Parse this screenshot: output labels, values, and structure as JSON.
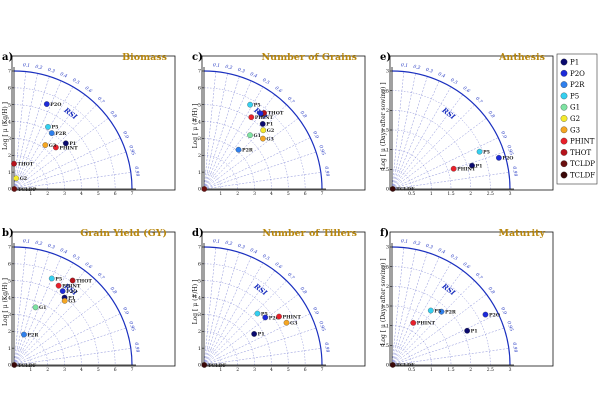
{
  "chart_data": {
    "type": "taylor",
    "arc_label": "RSI",
    "rsi_ticks": [
      "0.1",
      "0.2",
      "0.3",
      "0.4",
      "0.5",
      "0.6",
      "0.7",
      "0.8",
      "0.9",
      "0.95",
      "0.99"
    ],
    "legend": [
      {
        "name": "P1",
        "color": "#0a0a6e"
      },
      {
        "name": "P2O",
        "color": "#1c2ad9"
      },
      {
        "name": "P2R",
        "color": "#2f80ed"
      },
      {
        "name": "P5",
        "color": "#35d0f0"
      },
      {
        "name": "G1",
        "color": "#7ee3a3"
      },
      {
        "name": "G2",
        "color": "#f5ea2d"
      },
      {
        "name": "G3",
        "color": "#f5a623"
      },
      {
        "name": "PHINT",
        "color": "#e8202a"
      },
      {
        "name": "THOT",
        "color": "#b5121b"
      },
      {
        "name": "TCLDP",
        "color": "#6b1010"
      },
      {
        "name": "TCLDF",
        "color": "#3a0808"
      }
    ],
    "panels": [
      {
        "letter": "a)",
        "title": "Biomass",
        "ylabel": "Log [ μ (Kg/H) ]",
        "rmax": 7,
        "ticks": [
          "0",
          "1",
          "2",
          "3",
          "4",
          "5",
          "6",
          "7"
        ],
        "points": [
          {
            "name": "P2O",
            "sd": 5.4,
            "rsi": 0.36,
            "label": "P2O"
          },
          {
            "name": "P5",
            "sd": 4.2,
            "rsi": 0.48,
            "label": "P5"
          },
          {
            "name": "P2R",
            "sd": 4.0,
            "rsi": 0.56,
            "label": "P2R"
          },
          {
            "name": "P1",
            "sd": 4.1,
            "rsi": 0.75,
            "label": "P1"
          },
          {
            "name": "PHINT",
            "sd": 3.5,
            "rsi": 0.71,
            "label": "PHINT"
          },
          {
            "name": "G3",
            "sd": 3.2,
            "rsi": 0.58,
            "label": "G3"
          },
          {
            "name": "THOT",
            "sd": 1.5,
            "rsi": 0.0,
            "label": "THOT"
          },
          {
            "name": "G2",
            "sd": 0.65,
            "rsi": 0.2,
            "label": "G2"
          },
          {
            "name": "TCLDP",
            "sd": 0.02,
            "rsi": 0.99,
            "label": "TCLDP"
          }
        ]
      },
      {
        "letter": "c)",
        "title": "Number of Grains",
        "ylabel": "Log [ μ (#/H) ]",
        "rmax": 7,
        "ticks": [
          "0",
          "1",
          "2",
          "3",
          "4",
          "5",
          "6",
          "7"
        ],
        "points": [
          {
            "name": "P5",
            "sd": 5.7,
            "rsi": 0.48,
            "label": "P5"
          },
          {
            "name": "TCLDF",
            "sd": 5.6,
            "rsi": 0.61,
            "label": ""
          },
          {
            "name": "THOT",
            "sd": 5.75,
            "rsi": 0.62,
            "label": "THOT"
          },
          {
            "name": "P2O",
            "sd": 5.6,
            "rsi": 0.6,
            "label": ""
          },
          {
            "name": "PHINT",
            "sd": 5.1,
            "rsi": 0.55,
            "label": "PHINT"
          },
          {
            "name": "P1",
            "sd": 5.2,
            "rsi": 0.67,
            "label": "P1"
          },
          {
            "name": "G2",
            "sd": 4.95,
            "rsi": 0.71,
            "label": "G2"
          },
          {
            "name": "G1",
            "sd": 4.2,
            "rsi": 0.65,
            "label": "G1"
          },
          {
            "name": "G3",
            "sd": 4.6,
            "rsi": 0.76,
            "label": "G3"
          },
          {
            "name": "P2R",
            "sd": 3.1,
            "rsi": 0.66,
            "label": "P2R"
          },
          {
            "name": "TCLDP",
            "sd": 0.02,
            "rsi": 0.99,
            "label": ""
          }
        ]
      },
      {
        "letter": "e)",
        "title": "Anthesis",
        "ylabel": "Log [ μ (Days after sowing) ]",
        "rmax": 3,
        "ticks": [
          "0",
          "0.5",
          "1",
          "1.5",
          "2",
          "2.5",
          "3"
        ],
        "points": [
          {
            "name": "P5",
            "sd": 2.42,
            "rsi": 0.92,
            "label": "P5"
          },
          {
            "name": "P1",
            "sd": 2.12,
            "rsi": 0.96,
            "label": "P1"
          },
          {
            "name": "P2O",
            "sd": 2.83,
            "rsi": 0.96,
            "label": "P2O"
          },
          {
            "name": "PHINT",
            "sd": 1.65,
            "rsi": 0.95,
            "label": "PHINT"
          },
          {
            "name": "TCLDF",
            "sd": 0.02,
            "rsi": 0.99,
            "label": "TCLDF"
          }
        ]
      },
      {
        "letter": "b)",
        "title": "Grain Yield (GY)",
        "ylabel": "Log [ μ (Kg/H) ]",
        "rmax": 7,
        "ticks": [
          "0",
          "1",
          "2",
          "3",
          "4",
          "5",
          "6",
          "7"
        ],
        "points": [
          {
            "name": "P5",
            "sd": 5.6,
            "rsi": 0.4,
            "label": "P5"
          },
          {
            "name": "THOT",
            "sd": 6.1,
            "rsi": 0.57,
            "label": "THOT"
          },
          {
            "name": "PHINT",
            "sd": 5.4,
            "rsi": 0.49,
            "label": "PHINT"
          },
          {
            "name": "P2O",
            "sd": 5.25,
            "rsi": 0.55,
            "label": "P2O"
          },
          {
            "name": "P1",
            "sd": 5.0,
            "rsi": 0.6,
            "label": "P1"
          },
          {
            "name": "G3",
            "sd": 4.85,
            "rsi": 0.62,
            "label": "G3"
          },
          {
            "name": "G1",
            "sd": 3.65,
            "rsi": 0.35,
            "label": "G1"
          },
          {
            "name": "P2R",
            "sd": 1.9,
            "rsi": 0.31,
            "label": "P2R"
          },
          {
            "name": "TCLDF",
            "sd": 0.02,
            "rsi": 0.99,
            "label": "TCLDF"
          }
        ]
      },
      {
        "letter": "d)",
        "title": "Number of Tillers",
        "ylabel": "Log [ μ (#/H) ]",
        "rmax": 7,
        "ticks": [
          "0",
          "1",
          "2",
          "3",
          "4",
          "5",
          "6",
          "7"
        ],
        "points": [
          {
            "name": "P5",
            "sd": 4.4,
            "rsi": 0.72,
            "label": "P5"
          },
          {
            "name": "P2O",
            "sd": 4.6,
            "rsi": 0.79,
            "label": "P2O"
          },
          {
            "name": "PHINT",
            "sd": 5.3,
            "rsi": 0.84,
            "label": "PHINT"
          },
          {
            "name": "G3",
            "sd": 5.5,
            "rsi": 0.89,
            "label": "G3"
          },
          {
            "name": "P1",
            "sd": 3.5,
            "rsi": 0.85,
            "label": "P1"
          },
          {
            "name": "TCLDF",
            "sd": 0.02,
            "rsi": 0.99,
            "label": "TCLDF"
          }
        ]
      },
      {
        "letter": "f)",
        "title": "Maturity",
        "ylabel": "Log [ μ (Days after sowing) ]",
        "rmax": 3,
        "ticks": [
          "0",
          "0.5",
          "1",
          "1.5",
          "2",
          "2.5",
          "3"
        ],
        "points": [
          {
            "name": "P2R",
            "sd": 1.85,
            "rsi": 0.68,
            "label": "P2R"
          },
          {
            "name": "P5",
            "sd": 1.7,
            "rsi": 0.58,
            "label": "P5"
          },
          {
            "name": "P2O",
            "sd": 2.7,
            "rsi": 0.88,
            "label": "P2O"
          },
          {
            "name": "PHINT",
            "sd": 1.2,
            "rsi": 0.45,
            "label": "PHINT"
          },
          {
            "name": "P1",
            "sd": 2.1,
            "rsi": 0.91,
            "label": "P1"
          },
          {
            "name": "TCLDF",
            "sd": 0.02,
            "rsi": 0.99,
            "label": "TCLDF"
          }
        ]
      }
    ]
  }
}
